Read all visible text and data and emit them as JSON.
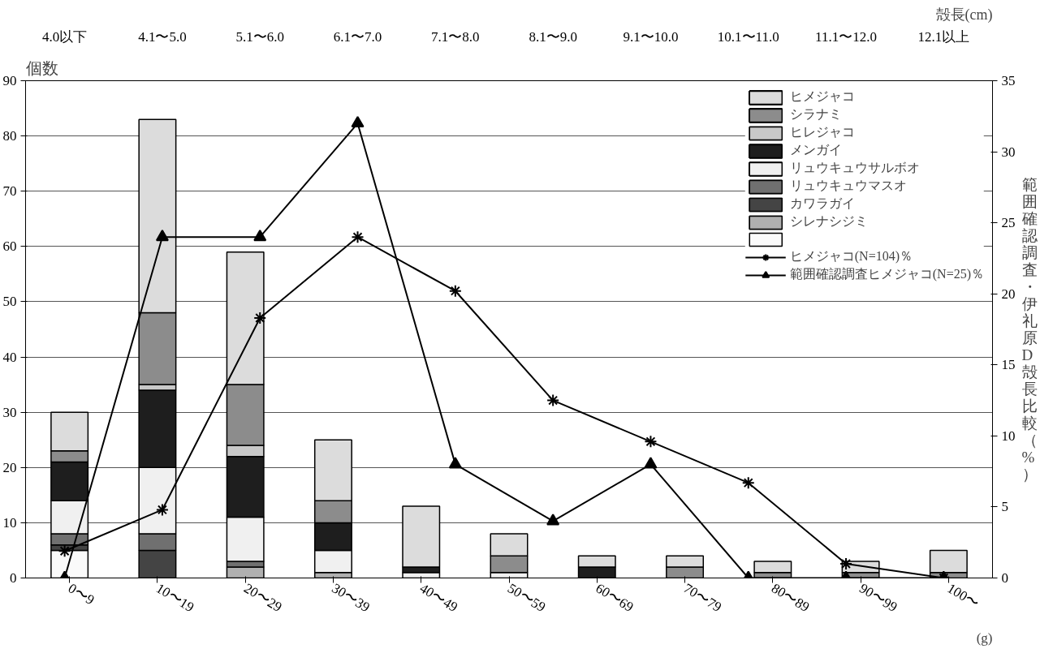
{
  "chart_data": [
    {
      "type": "bar",
      "stacked": true,
      "ylabel": "個数",
      "xlabel": "(g)",
      "categories": [
        "0〜9",
        "10〜19",
        "20〜29",
        "30〜39",
        "40〜49",
        "50〜59",
        "60〜69",
        "70〜79",
        "80〜89",
        "90〜99",
        "100〜"
      ],
      "ylim": [
        0,
        90
      ],
      "yticks": [
        0,
        10,
        20,
        30,
        40,
        50,
        60,
        70,
        80,
        90
      ],
      "grid": "y",
      "legend": "top right",
      "series": [
        {
          "color": "#fafafa",
          "values": [
            5,
            0,
            0,
            0,
            0,
            0,
            0,
            0,
            0,
            0,
            0
          ]
        },
        {
          "name": "シレナシジミ",
          "color": "#b0b0b0",
          "values": [
            0,
            0,
            2,
            1,
            0,
            0,
            0,
            0,
            0,
            0,
            0
          ]
        },
        {
          "name": "カワラガイ",
          "color": "#444444",
          "values": [
            1,
            5,
            0,
            0,
            0,
            0,
            0,
            0,
            0,
            0,
            0
          ]
        },
        {
          "name": "リュウキュウマスオ",
          "color": "#707070",
          "values": [
            2,
            3,
            1,
            0,
            0,
            0,
            0,
            0,
            0,
            0,
            0
          ]
        },
        {
          "name": "リュウキュウサルボオ",
          "color": "#f0f0f0",
          "values": [
            6,
            12,
            8,
            4,
            1,
            1,
            0,
            0,
            0,
            0,
            0
          ]
        },
        {
          "name": "メンガイ",
          "color": "#1e1e1e",
          "values": [
            7,
            14,
            11,
            5,
            1,
            0,
            2,
            0,
            0,
            0,
            0
          ]
        },
        {
          "name": "ヒレジャコ",
          "color": "#c8c8c8",
          "values": [
            0,
            1,
            2,
            0,
            0,
            0,
            0,
            0,
            0,
            0,
            0
          ]
        },
        {
          "name": "シラナミ",
          "color": "#8c8c8c",
          "values": [
            2,
            13,
            11,
            4,
            0,
            3,
            0,
            2,
            1,
            1,
            1
          ]
        },
        {
          "name": "ヒメジャコ",
          "color": "#dcdcdc",
          "values": [
            7,
            35,
            24,
            11,
            11,
            4,
            2,
            2,
            2,
            2,
            4
          ]
        }
      ]
    },
    {
      "type": "line",
      "xlabel": "殻長(cm)",
      "ylabel": "範囲確認調査・伊礼原D殻長比較（%）",
      "categories": [
        "4.0以下",
        "4.1〜5.0",
        "5.1〜6.0",
        "6.1〜7.0",
        "7.1〜8.0",
        "8.1〜9.0",
        "9.1〜10.0",
        "10.1〜11.0",
        "11.1〜12.0",
        "12.1以上"
      ],
      "ylim": [
        0,
        35
      ],
      "yticks": [
        0,
        5,
        10,
        15,
        20,
        25,
        30,
        35
      ],
      "legend": "top right",
      "series": [
        {
          "name": "ヒメジャコ(N=104)％",
          "marker": "cross",
          "color": "#000000",
          "values": [
            1.9,
            4.8,
            18.3,
            24.0,
            20.2,
            12.5,
            9.6,
            6.7,
            1.0,
            0
          ]
        },
        {
          "name": "範囲確認調査ヒメジャコ(N=25)％",
          "marker": "triangle",
          "color": "#000000",
          "values": [
            0,
            24,
            24,
            32,
            8,
            4,
            8,
            0,
            0,
            0
          ]
        }
      ]
    }
  ]
}
